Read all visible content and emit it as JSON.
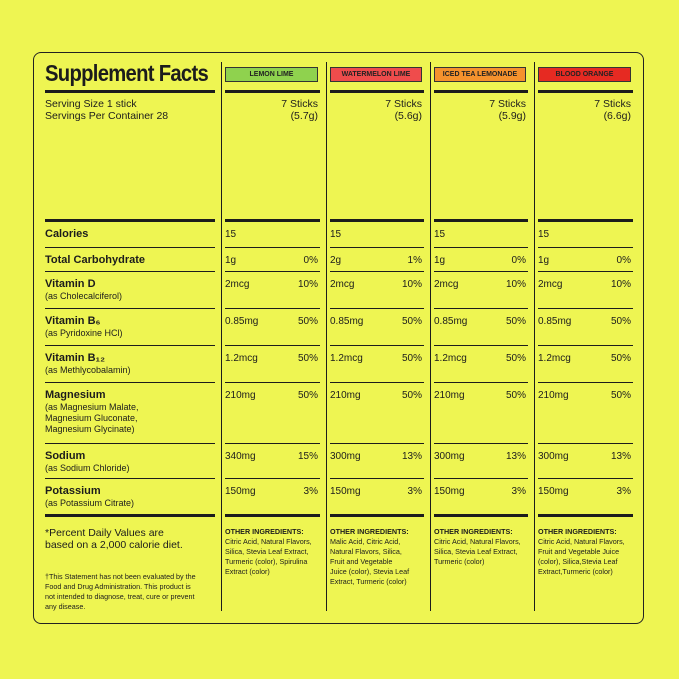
{
  "title": "Supplement Facts",
  "serving": [
    "Serving Size 1 stick",
    "Servings Per Container 28"
  ],
  "nutrients": [
    {
      "name": "Calories"
    },
    {
      "name": "Total Carbohydrate"
    },
    {
      "name": "Vitamin D",
      "sub": "(as Cholecalciferol)"
    },
    {
      "name": "Vitamin B₆",
      "sub": "(as Pyridoxine HCl)"
    },
    {
      "name": "Vitamin B₁₂",
      "sub": "(as Methlycobalamin)"
    },
    {
      "name": "Magnesium",
      "sub": "(as Magnesium Malate, Magnesium Gluconate, Magnesium Glycinate)"
    },
    {
      "name": "Sodium",
      "sub": "(as Sodium Chloride)"
    },
    {
      "name": "Potassium",
      "sub": "(as Potassium Citrate)"
    }
  ],
  "footnote": [
    "*Percent Daily Values are",
    "based on a 2,000 calorie diet."
  ],
  "disclaimer": [
    "†This Statement has not been evaluated by the",
    "Food and Drug Administration. This product is",
    "not intended to diagnose, treat, cure or prevent",
    "any disease."
  ],
  "flavors": [
    {
      "name": "LEMON LIME",
      "color": "#8fd24e",
      "amount": "7 Sticks",
      "weight": "(5.7g)",
      "rows": [
        [
          "15"
        ],
        [
          "1g",
          "0%"
        ],
        [
          "2mcg",
          "10%"
        ],
        [
          "0.85mg",
          "50%"
        ],
        [
          "1.2mcg",
          "50%"
        ],
        [
          "210mg",
          "50%"
        ],
        [
          "340mg",
          "15%"
        ],
        [
          "150mg",
          "3%"
        ]
      ],
      "ingredients_label": "OTHER INGREDIENTS:",
      "ingredients": [
        "Citric Acid, Natural Flavors,",
        "Silica, Stevia Leaf Extract,",
        "Turmeric (color), Spirulina",
        "Extract (color)"
      ]
    },
    {
      "name": "WATERMELON LIME",
      "color": "#ef4c4c",
      "amount": "7 Sticks",
      "weight": "(5.6g)",
      "rows": [
        [
          "15"
        ],
        [
          "2g",
          "1%"
        ],
        [
          "2mcg",
          "10%"
        ],
        [
          "0.85mg",
          "50%"
        ],
        [
          "1.2mcg",
          "50%"
        ],
        [
          "210mg",
          "50%"
        ],
        [
          "300mg",
          "13%"
        ],
        [
          "150mg",
          "3%"
        ]
      ],
      "ingredients_label": "OTHER INGREDIENTS:",
      "ingredients": [
        "Malic Acid, Citric Acid,",
        "Natural Flavors, Silica,",
        "Fruit and Vegetable",
        "Juice (color), Stevia Leaf",
        "Extract, Turmeric (color)"
      ]
    },
    {
      "name": "ICED TEA LEMONADE",
      "color": "#f5922d",
      "amount": "7 Sticks",
      "weight": "(5.9g)",
      "rows": [
        [
          "15"
        ],
        [
          "1g",
          "0%"
        ],
        [
          "2mcg",
          "10%"
        ],
        [
          "0.85mg",
          "50%"
        ],
        [
          "1.2mcg",
          "50%"
        ],
        [
          "210mg",
          "50%"
        ],
        [
          "300mg",
          "13%"
        ],
        [
          "150mg",
          "3%"
        ]
      ],
      "ingredients_label": "OTHER INGREDIENTS:",
      "ingredients": [
        "Citric Acid, Natural Flavors,",
        "Silica, Stevia Leaf Extract,",
        "Turmeric (color)"
      ]
    },
    {
      "name": "BLOOD ORANGE",
      "color": "#e62a22",
      "amount": "7 Sticks",
      "weight": "(6.6g)",
      "rows": [
        [
          "15"
        ],
        [
          "1g",
          "0%"
        ],
        [
          "2mcg",
          "10%"
        ],
        [
          "0.85mg",
          "50%"
        ],
        [
          "1.2mcg",
          "50%"
        ],
        [
          "210mg",
          "50%"
        ],
        [
          "300mg",
          "13%"
        ],
        [
          "150mg",
          "3%"
        ]
      ],
      "ingredients_label": "OTHER INGREDIENTS:",
      "ingredients": [
        "Citric Acid, Natural Flavors,",
        "Fruit and Vegetable Juice",
        "(color), Silica,Stevia Leaf",
        "Extract,Turmeric (color)"
      ]
    }
  ]
}
